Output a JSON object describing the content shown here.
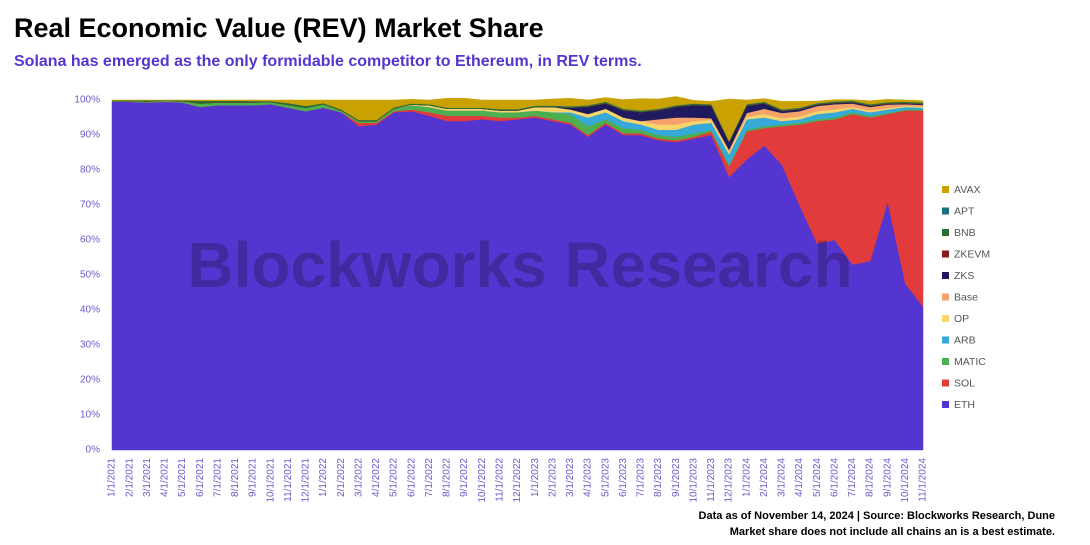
{
  "chart_data": {
    "type": "stacked_area",
    "title": "Real Economic Value (REV) Market Share",
    "subtitle": "Solana has emerged as the only formidable competitor to Ethereum, in REV terms.",
    "watermark": "Blockworks Research",
    "notes": [
      "Data as of November 14, 2024 | Source: Blockworks Research, Dune",
      "Market share does not include all chains an is a best estimate."
    ],
    "x": [
      "1/1/2021",
      "2/1/2021",
      "3/1/2021",
      "4/1/2021",
      "5/1/2021",
      "6/1/2021",
      "7/1/2021",
      "8/1/2021",
      "9/1/2021",
      "10/1/2021",
      "11/1/2021",
      "12/1/2021",
      "1/1/2022",
      "2/1/2022",
      "3/1/2022",
      "4/1/2022",
      "5/1/2022",
      "6/1/2022",
      "7/1/2022",
      "8/1/2022",
      "9/1/2022",
      "10/1/2022",
      "11/1/2022",
      "12/1/2022",
      "1/1/2023",
      "2/1/2023",
      "3/1/2023",
      "4/1/2023",
      "5/1/2023",
      "6/1/2023",
      "7/1/2023",
      "8/1/2023",
      "9/1/2023",
      "10/1/2023",
      "11/1/2023",
      "12/1/2023",
      "1/1/2024",
      "2/1/2024",
      "3/1/2024",
      "4/1/2024",
      "5/1/2024",
      "6/1/2024",
      "7/1/2024",
      "8/1/2024",
      "9/1/2024",
      "10/1/2024",
      "11/1/2024"
    ],
    "ylim": [
      0,
      100
    ],
    "yticks": [
      {
        "value": 0,
        "label": "0%"
      },
      {
        "value": 10,
        "label": "10%"
      },
      {
        "value": 20,
        "label": "20%"
      },
      {
        "value": 30,
        "label": "30%"
      },
      {
        "value": 40,
        "label": "40%"
      },
      {
        "value": 50,
        "label": "50%"
      },
      {
        "value": 60,
        "label": "60%"
      },
      {
        "value": 70,
        "label": "70%"
      },
      {
        "value": 80,
        "label": "80%"
      },
      {
        "value": 90,
        "label": "90%"
      },
      {
        "value": 100,
        "label": "100%"
      }
    ],
    "grid": false,
    "legend": "right",
    "series": [
      {
        "name": "ETH",
        "color": "#5535cf",
        "values": [
          99.5,
          99.5,
          99.3,
          99.5,
          99.3,
          98,
          98.5,
          98.5,
          98.5,
          98.8,
          97.8,
          96.8,
          97.8,
          96.5,
          92.5,
          93,
          96.5,
          96.8,
          95.5,
          94,
          94,
          94.5,
          94,
          94.5,
          95,
          94,
          93,
          89.5,
          93,
          90,
          90,
          88.5,
          88,
          89,
          90,
          78,
          83,
          87,
          81.5,
          70,
          59,
          60,
          53,
          54,
          71,
          47.5,
          41
        ]
      },
      {
        "name": "SOL",
        "color": "#e23b3b",
        "values": [
          0,
          0,
          0,
          0,
          0,
          0,
          0,
          0,
          0,
          0,
          0,
          0,
          0,
          0,
          1,
          0.5,
          0.3,
          0.5,
          1,
          1.5,
          1.5,
          1,
          1,
          0.5,
          0.5,
          0.5,
          0.5,
          0.5,
          0.5,
          0.5,
          0.5,
          0.5,
          0.5,
          0.5,
          1,
          3,
          8,
          5,
          11,
          23,
          35,
          34.5,
          43,
          41,
          25,
          49.5,
          56
        ]
      },
      {
        "name": "MATIC",
        "color": "#4caf50",
        "values": [
          0.2,
          0.2,
          0.3,
          0.3,
          0.4,
          1,
          0.8,
          0.8,
          0.8,
          0.6,
          0.8,
          1,
          1,
          0.5,
          0.5,
          0.5,
          0.8,
          1.2,
          1.5,
          1.5,
          1.5,
          1.5,
          1.5,
          1.5,
          1.5,
          2,
          2.5,
          2.5,
          1,
          1.5,
          1,
          1,
          1,
          1,
          0.5,
          0.5,
          0.5,
          0.5,
          0.5,
          0.5,
          0.5,
          0.5,
          0.5,
          0.5,
          0.3,
          0.3,
          0.3
        ]
      },
      {
        "name": "ARB",
        "color": "#36a9d9",
        "values": [
          0,
          0,
          0,
          0,
          0,
          0,
          0,
          0,
          0,
          0,
          0,
          0,
          0,
          0,
          0,
          0,
          0,
          0,
          0,
          0,
          0,
          0,
          0,
          0,
          0,
          0,
          0.5,
          2.5,
          2,
          2,
          1.5,
          1.5,
          2,
          2.5,
          2,
          3,
          3,
          2.5,
          1,
          1,
          1.5,
          1.5,
          1,
          1,
          1,
          0.7,
          0.5
        ]
      },
      {
        "name": "OP",
        "color": "#f7d56b",
        "values": [
          0,
          0,
          0,
          0,
          0,
          0,
          0,
          0,
          0,
          0,
          0,
          0,
          0,
          0,
          0,
          0,
          0,
          0.2,
          0.5,
          0.5,
          0.5,
          0.5,
          0.5,
          0.5,
          1,
          1.5,
          0.8,
          1,
          1,
          1,
          1,
          1.5,
          1.5,
          1,
          0.8,
          0.8,
          0.8,
          1,
          0.8,
          0.8,
          0.8,
          0.8,
          0.5,
          0.5,
          0.4,
          0.3,
          0.3
        ]
      },
      {
        "name": "Base",
        "color": "#f5a26b",
        "values": [
          0,
          0,
          0,
          0,
          0,
          0,
          0,
          0,
          0,
          0,
          0,
          0,
          0,
          0,
          0,
          0,
          0,
          0,
          0,
          0,
          0,
          0,
          0,
          0,
          0,
          0,
          0,
          0,
          0,
          0,
          0,
          1.5,
          2,
          1,
          0.5,
          0.5,
          1,
          1.5,
          1.5,
          1.5,
          1.5,
          1.5,
          1,
          1,
          1,
          0.5,
          0.5
        ]
      },
      {
        "name": "ZKS",
        "color": "#1f1a5e",
        "values": [
          0,
          0,
          0,
          0,
          0,
          0,
          0,
          0,
          0,
          0,
          0,
          0,
          0,
          0,
          0,
          0,
          0,
          0,
          0,
          0,
          0,
          0,
          0,
          0,
          0,
          0,
          0.5,
          2,
          1.5,
          2,
          2.5,
          2.5,
          3,
          3.5,
          3.5,
          2,
          2,
          1.5,
          0.5,
          0.5,
          0.3,
          0.3,
          0.3,
          0.3,
          0.2,
          0.2,
          0.2
        ]
      },
      {
        "name": "ZKEVM",
        "color": "#8b1a1a",
        "values": [
          0,
          0,
          0,
          0,
          0,
          0,
          0,
          0,
          0,
          0,
          0,
          0,
          0,
          0,
          0,
          0,
          0,
          0,
          0,
          0,
          0,
          0,
          0,
          0,
          0,
          0,
          0,
          0.1,
          0.1,
          0.1,
          0.1,
          0.1,
          0.1,
          0.1,
          0.1,
          0.1,
          0.1,
          0.1,
          0.1,
          0.1,
          0.1,
          0.1,
          0.1,
          0.1,
          0.1,
          0.1,
          0.1
        ]
      },
      {
        "name": "BNB",
        "color": "#2e6b2e",
        "values": [
          0.2,
          0.2,
          0.3,
          0.1,
          0.2,
          0.8,
          0.5,
          0.5,
          0.4,
          0.3,
          0.5,
          0.5,
          0.3,
          0.3,
          0.3,
          0.3,
          0.3,
          0.3,
          0.3,
          0.3,
          0.3,
          0.3,
          0.3,
          0.3,
          0.3,
          0.3,
          0.3,
          0.3,
          0.3,
          0.3,
          0.3,
          0.3,
          0.3,
          0.3,
          0.3,
          0.3,
          0.3,
          0.3,
          0.3,
          0.3,
          0.3,
          0.3,
          0.3,
          0.3,
          0.3,
          0.3,
          0.3
        ]
      },
      {
        "name": "APT",
        "color": "#1a6f80",
        "values": [
          0,
          0,
          0,
          0,
          0,
          0,
          0,
          0,
          0,
          0,
          0,
          0,
          0,
          0,
          0,
          0,
          0,
          0,
          0,
          0,
          0,
          0,
          0.1,
          0.1,
          0.1,
          0.1,
          0.1,
          0.1,
          0.1,
          0.1,
          0.1,
          0.1,
          0.1,
          0.1,
          0.1,
          0.1,
          0.1,
          0.1,
          0.1,
          0.1,
          0.1,
          0.1,
          0.1,
          0.1,
          0.1,
          0.1,
          0.1
        ]
      },
      {
        "name": "AVAX",
        "color": "#c9a100",
        "values": [
          0.1,
          0.1,
          0.1,
          0.1,
          0.1,
          0.2,
          0.2,
          0.2,
          0.3,
          0.3,
          0.9,
          1.7,
          0.9,
          2.7,
          5.7,
          5.7,
          2.1,
          1.2,
          1.2,
          2.7,
          2.7,
          2.2,
          2.6,
          2.6,
          1.6,
          1.9,
          2.3,
          1.5,
          1.2,
          2.6,
          3.4,
          2.8,
          2.5,
          0.9,
          0.8,
          12,
          1.2,
          0.9,
          2.3,
          1.8,
          0.6,
          0.5,
          0.3,
          1,
          0.8,
          0.5,
          0.5
        ]
      }
    ]
  }
}
